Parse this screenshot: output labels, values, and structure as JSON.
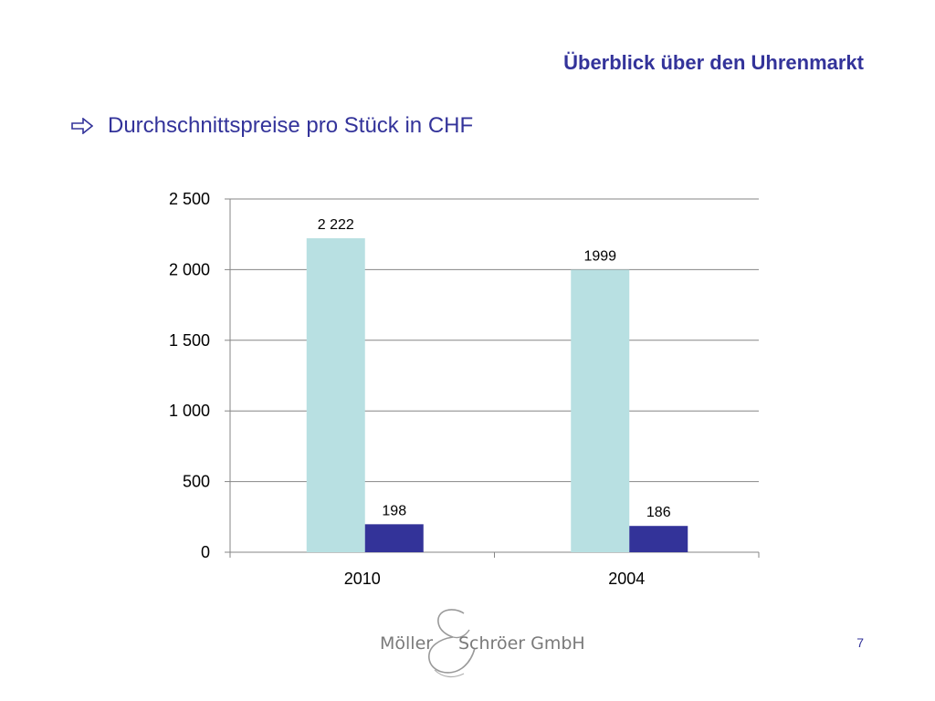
{
  "slide": {
    "title": "Überblick über den Uhrenmarkt",
    "subtitle": "Durchschnittspreise pro Stück in CHF",
    "bullet_icon": "outline-arrow-right-icon",
    "page_number": "7"
  },
  "logo": {
    "left_text": "Möller",
    "right_text": "Schröer GmbH",
    "ampersand_icon": "script-ampersand-icon"
  },
  "colors": {
    "title": "#33339a",
    "bar_light": "#b8e0e2",
    "bar_dark": "#333399",
    "grid": "#868686",
    "logo": "#7a7a7a"
  },
  "chart_data": {
    "type": "bar",
    "categories": [
      "2010",
      "2004"
    ],
    "series": [
      {
        "values": [
          2222,
          1999
        ],
        "labels": [
          "2 222",
          "1999"
        ],
        "color": "#b8e0e2"
      },
      {
        "values": [
          198,
          186
        ],
        "labels": [
          "198",
          "186"
        ],
        "color": "#333399"
      }
    ],
    "ylim": [
      0,
      2500
    ],
    "yticks": [
      0,
      500,
      1000,
      1500,
      2000,
      2500
    ],
    "ytick_labels": [
      "0",
      "500",
      "1 000",
      "1 500",
      "2 000",
      "2 500"
    ],
    "grid": true,
    "legend": "none",
    "title": "",
    "xlabel": "",
    "ylabel": ""
  }
}
